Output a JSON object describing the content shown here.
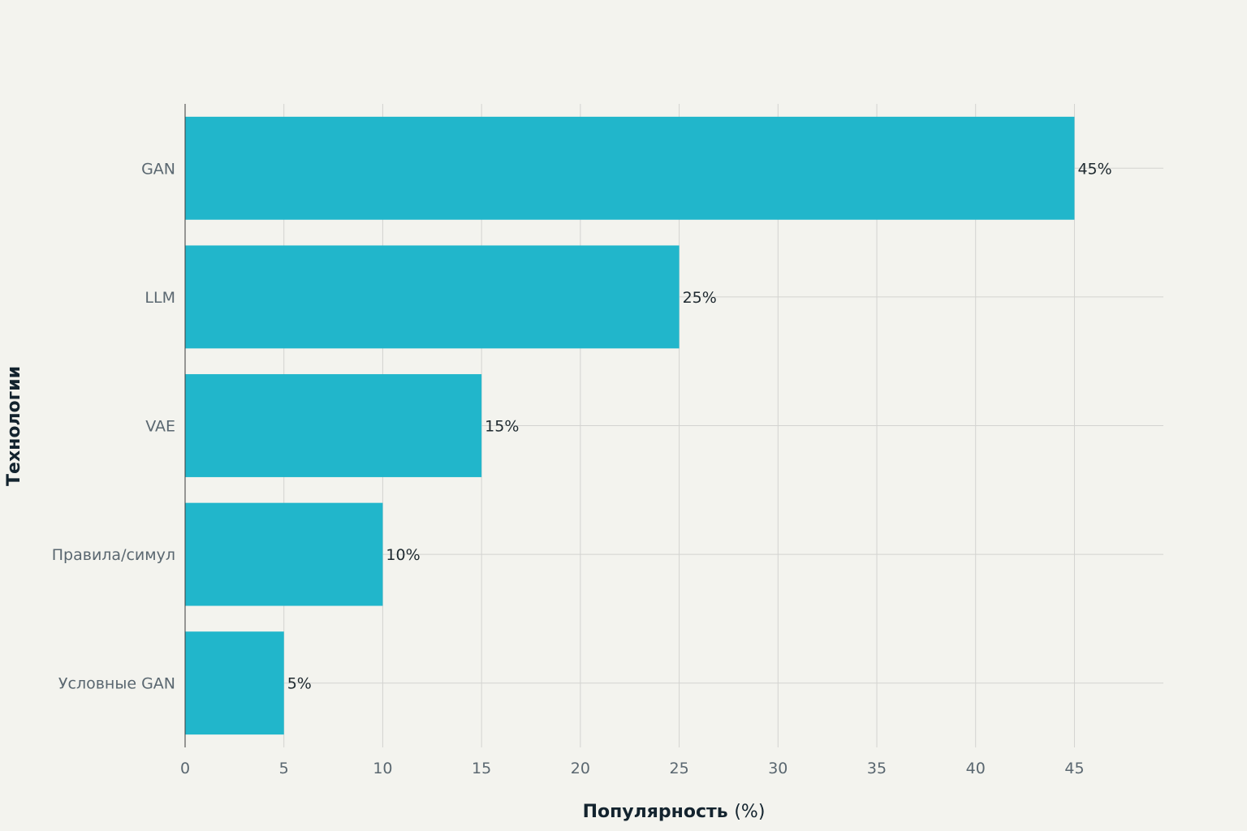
{
  "chart_data": {
    "type": "bar",
    "orientation": "horizontal",
    "categories": [
      "GAN",
      "LLM",
      "VAE",
      "Правила/симул",
      "Условные GAN"
    ],
    "values": [
      45,
      25,
      15,
      10,
      5
    ],
    "value_labels": [
      "45%",
      "25%",
      "15%",
      "10%",
      "5%"
    ],
    "xlabel_main": "Популярность",
    "xlabel_unit": "(%)",
    "ylabel": "Технологии",
    "xlim": [
      0,
      49.5
    ],
    "xticks": [
      0,
      5,
      10,
      15,
      20,
      25,
      30,
      35,
      40,
      45
    ],
    "grid": true,
    "bar_color": "#21b6cb",
    "background": "#f3f3ee"
  }
}
